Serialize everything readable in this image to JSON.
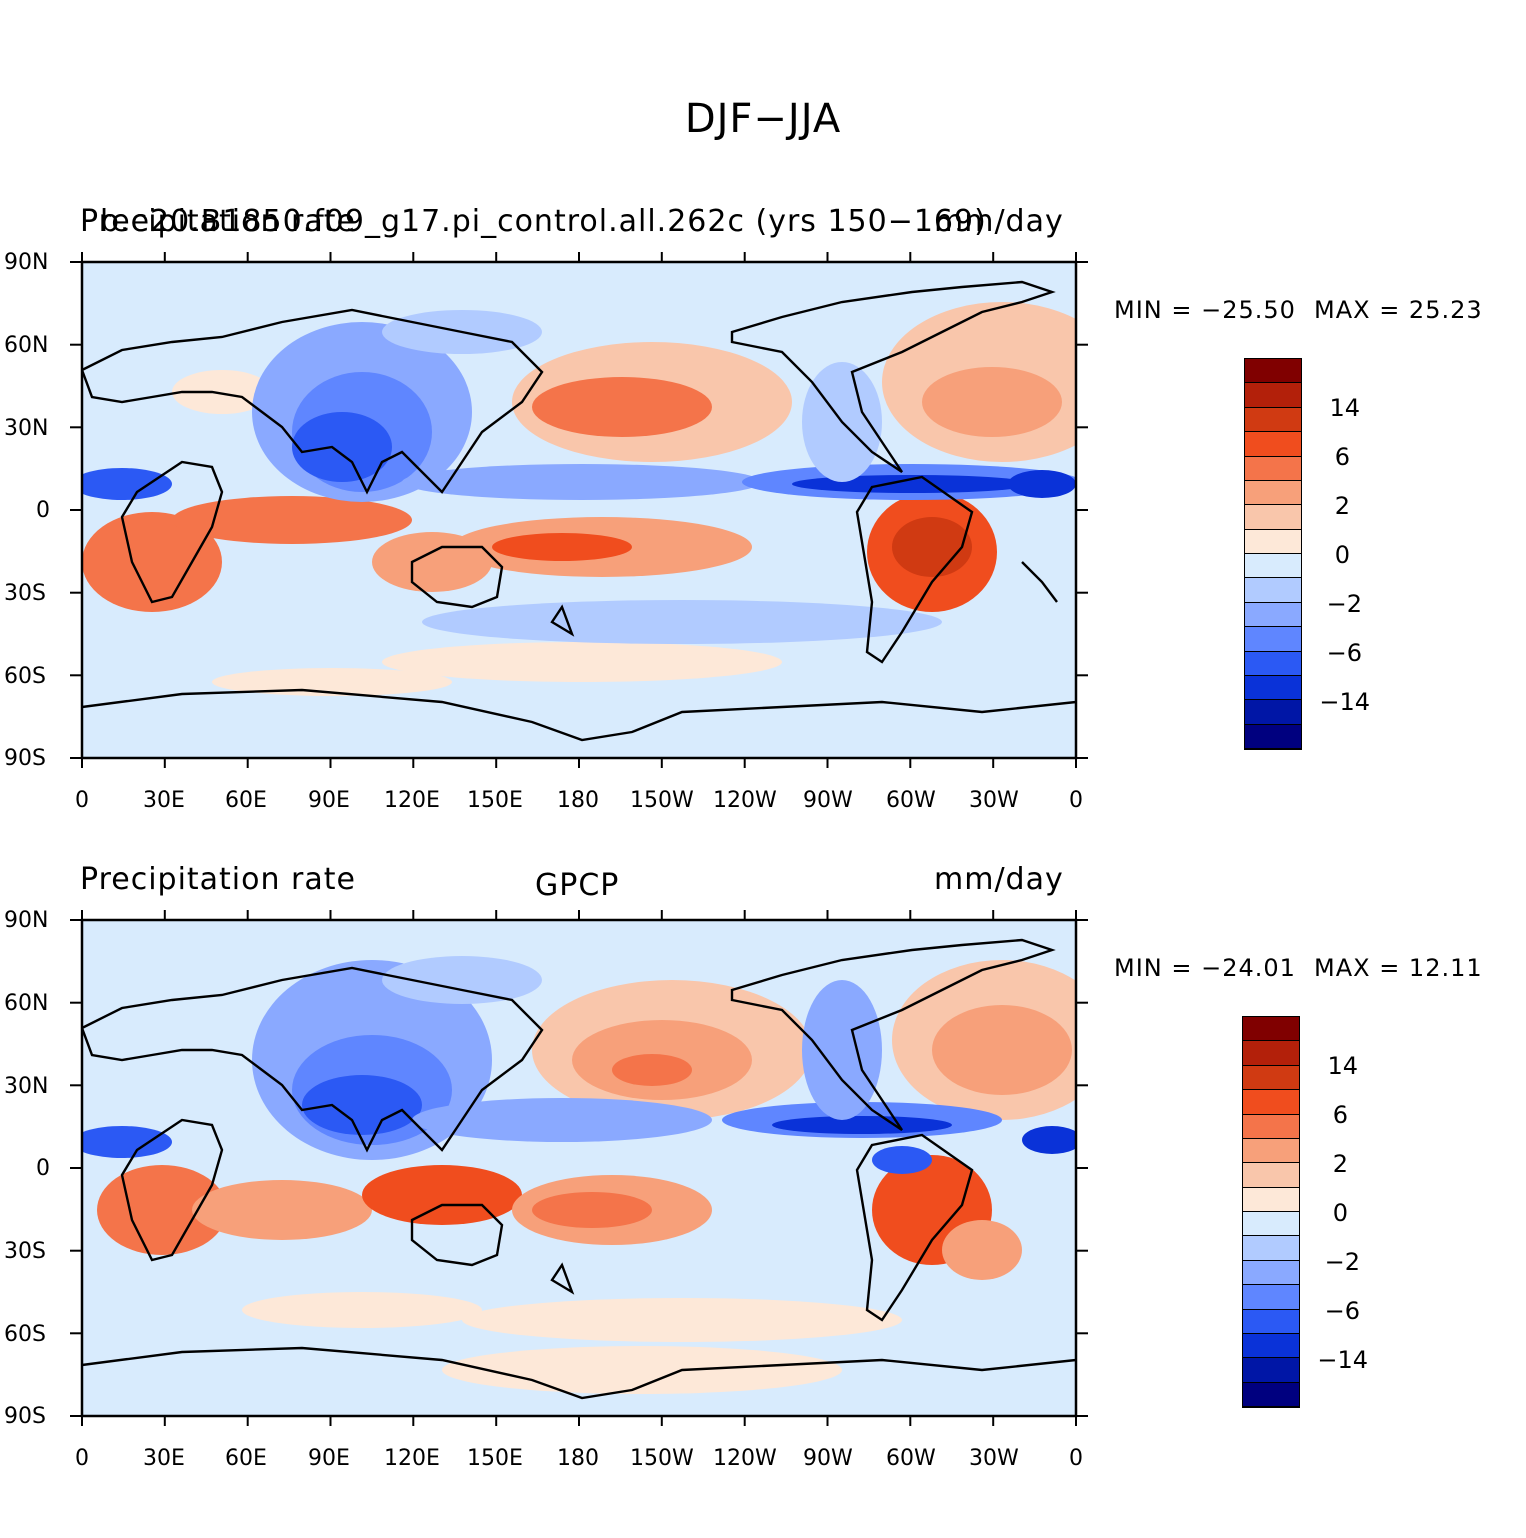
{
  "title": "DJF−JJA",
  "panels": [
    {
      "left_title": "Precipitation rate",
      "center_title": "b.e20.B1850.f09_g17.pi_control.all.262c (yrs 150−169)",
      "right_title": "mm/day",
      "min_label": "MIN = −25.50",
      "max_label": "MAX =  25.23"
    },
    {
      "left_title": "Precipitation rate",
      "center_title": "GPCP",
      "right_title": "mm/day",
      "min_label": "MIN = −24.01",
      "max_label": "MAX =  12.11"
    }
  ],
  "lat_labels": [
    "90N",
    "60N",
    "30N",
    "0",
    "30S",
    "60S",
    "90S"
  ],
  "lon_labels": [
    "0",
    "30E",
    "60E",
    "90E",
    "120E",
    "150E",
    "180",
    "150W",
    "120W",
    "90W",
    "60W",
    "30W",
    "0"
  ],
  "colorbar": {
    "colors": [
      "#800000",
      "#b3200a",
      "#d03a12",
      "#f04d1e",
      "#f4744a",
      "#f7a07a",
      "#f9c6ab",
      "#fde8d8",
      "#d8ebfd",
      "#b1cbff",
      "#8aa9ff",
      "#5f86ff",
      "#2b59f4",
      "#0a32d8",
      "#0016a6",
      "#00007f"
    ],
    "labels": [
      "14",
      "6",
      "2",
      "0",
      "−2",
      "−6",
      "−14"
    ]
  },
  "chart_data": [
    {
      "type": "heatmap",
      "title": "DJF−JJA Precipitation rate — b.e20.B1850.f09_g17.pi_control.all.262c (yrs 150−169)",
      "units": "mm/day",
      "xlim": [
        0,
        360
      ],
      "ylim": [
        -90,
        90
      ],
      "min": -25.5,
      "max": 25.23,
      "contour_levels": [
        -14,
        -10,
        -6,
        -4,
        -2,
        -1,
        0,
        1,
        2,
        4,
        6,
        10,
        14
      ]
    },
    {
      "type": "heatmap",
      "title": "DJF−JJA Precipitation rate — GPCP",
      "units": "mm/day",
      "xlim": [
        0,
        360
      ],
      "ylim": [
        -90,
        90
      ],
      "min": -24.01,
      "max": 12.11,
      "contour_levels": [
        -14,
        -10,
        -6,
        -4,
        -2,
        -1,
        0,
        1,
        2,
        4,
        6,
        10,
        14
      ]
    }
  ]
}
